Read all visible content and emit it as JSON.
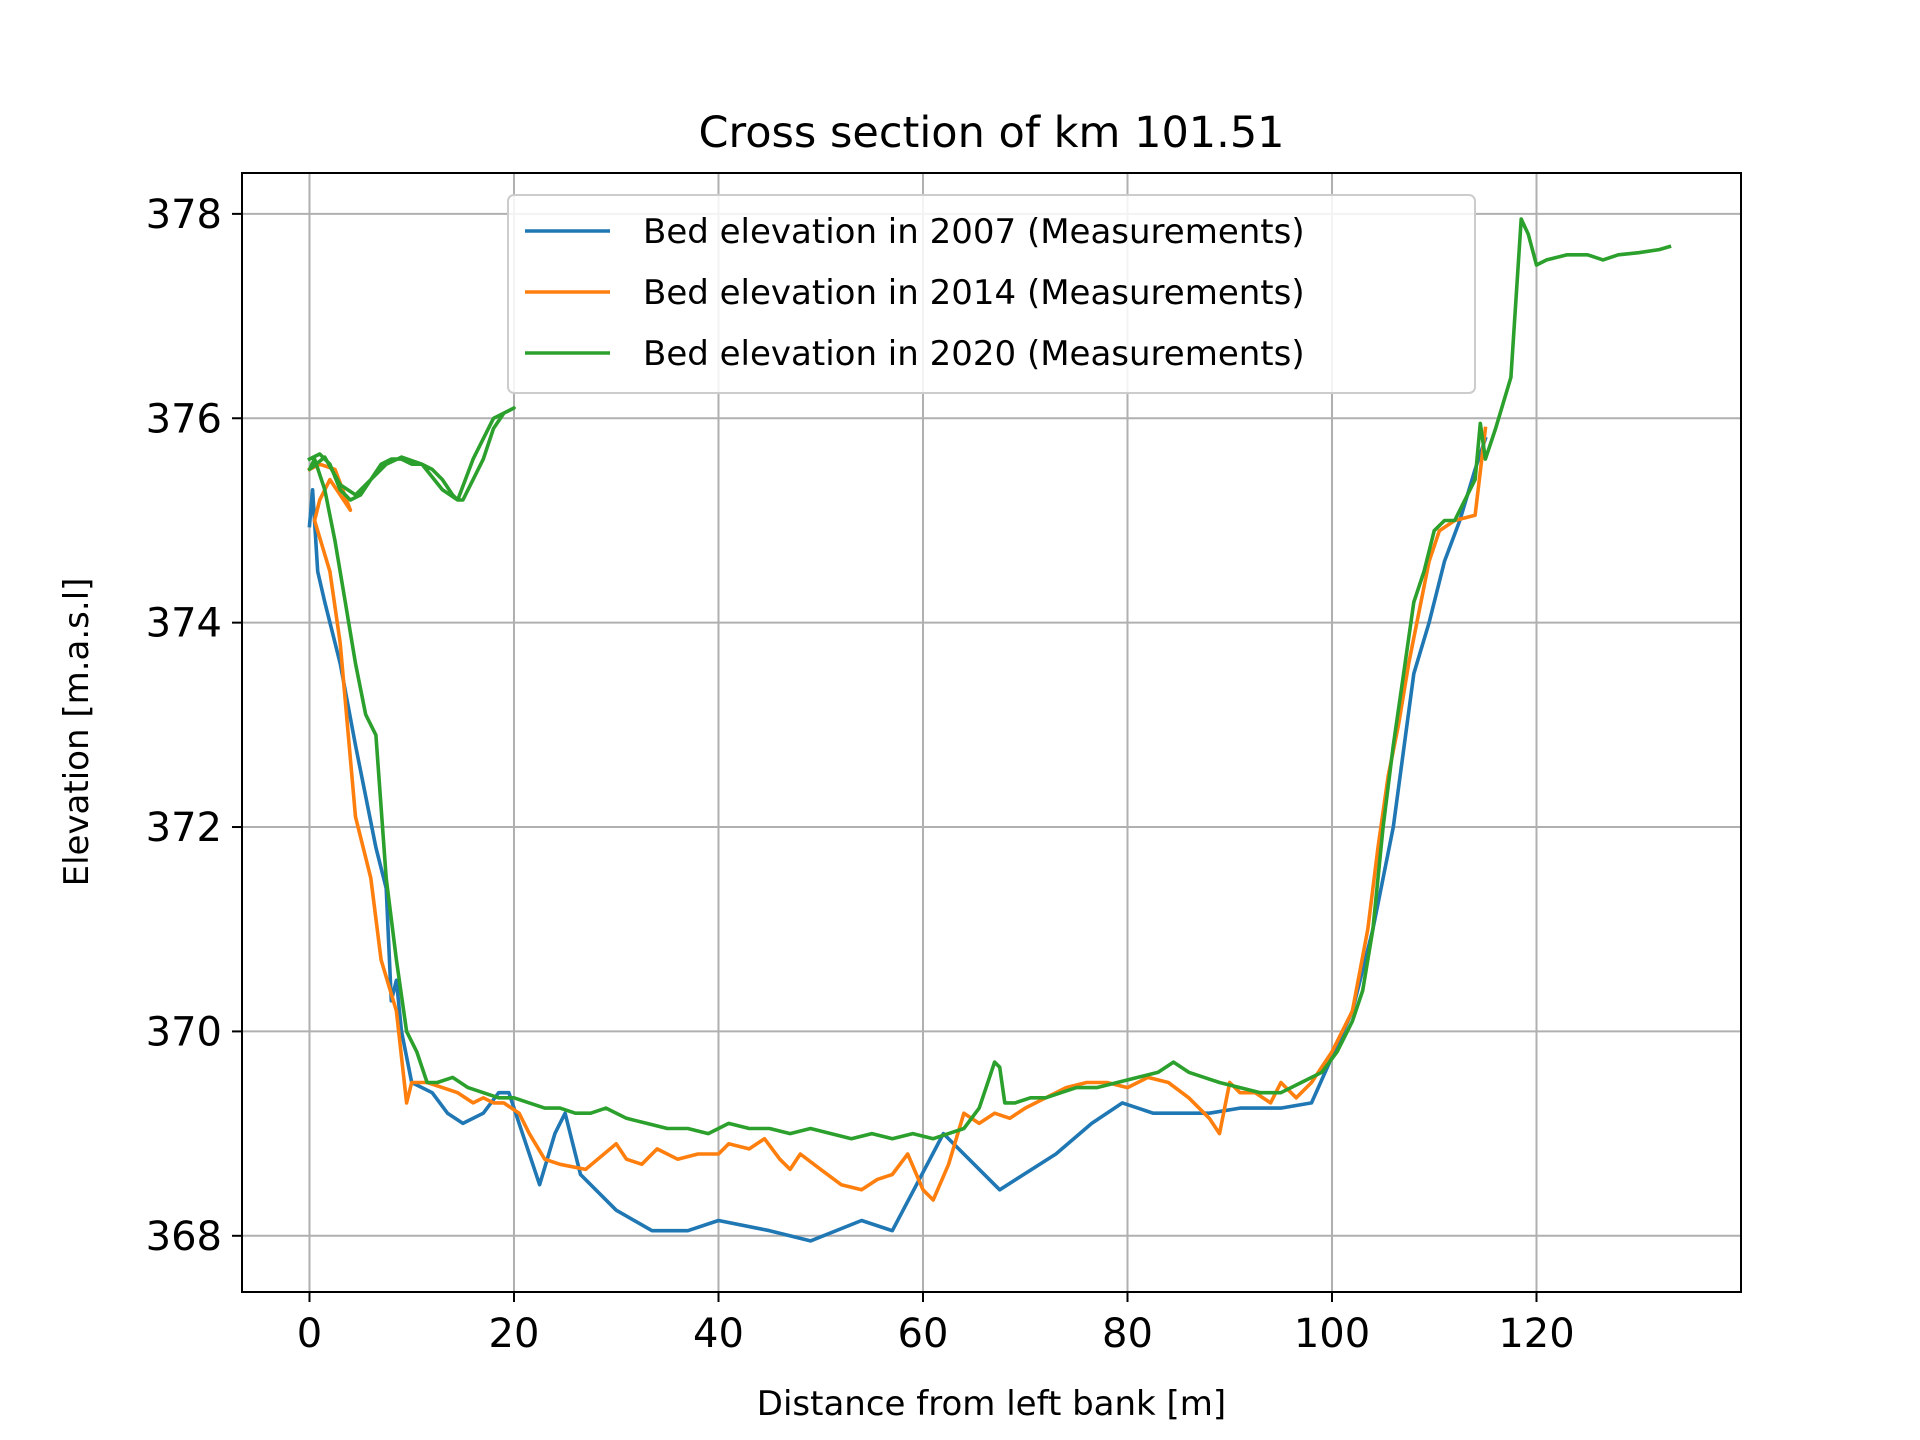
{
  "chart_data": {
    "type": "line",
    "title": "Cross section of km 101.51",
    "xlabel": "Distance from left bank [m]",
    "ylabel": "Elevation [m.a.s.l]",
    "xlim": [
      -6.6,
      140.0
    ],
    "ylim": [
      367.45,
      378.4
    ],
    "xticks": [
      0,
      20,
      40,
      60,
      80,
      100,
      120
    ],
    "yticks": [
      368,
      370,
      372,
      374,
      376,
      378
    ],
    "xtick_labels": [
      "0",
      "20",
      "40",
      "60",
      "80",
      "100",
      "120"
    ],
    "ytick_labels": [
      "368",
      "370",
      "372",
      "374",
      "376",
      "378"
    ],
    "grid": true,
    "legend_position": "upper-center",
    "series": [
      {
        "name": "Bed elevation in 2007 (Measurements)",
        "color": "#1f77b4",
        "x": [
          0.0,
          0.3,
          0.8,
          1.5,
          3.0,
          4.5,
          5.5,
          6.5,
          7.5,
          8.0,
          8.5,
          9.0,
          10.0,
          12.0,
          13.5,
          15.0,
          17.0,
          18.5,
          19.5,
          20.5,
          22.5,
          24.0,
          25.0,
          26.5,
          30.0,
          33.5,
          37.0,
          40.0,
          45.0,
          49.0,
          54.0,
          57.0,
          62.0,
          67.5,
          73.0,
          76.5,
          79.5,
          82.5,
          88.0,
          91.0,
          95.0,
          98.0,
          102.0,
          104.0,
          106.0,
          108.0,
          109.5,
          111.0,
          112.5,
          114.0,
          115.0
        ],
        "y": [
          374.95,
          375.3,
          374.5,
          374.2,
          373.6,
          372.8,
          372.3,
          371.8,
          371.4,
          370.3,
          370.5,
          370.0,
          369.5,
          369.4,
          369.2,
          369.1,
          369.2,
          369.4,
          369.4,
          369.1,
          368.5,
          369.0,
          369.2,
          368.6,
          368.25,
          368.05,
          368.05,
          368.15,
          368.05,
          367.95,
          368.15,
          368.05,
          369.0,
          368.45,
          368.8,
          369.1,
          369.3,
          369.2,
          369.2,
          369.25,
          369.25,
          369.3,
          370.2,
          371.0,
          372.0,
          373.5,
          374.0,
          374.6,
          375.0,
          375.5,
          375.8
        ]
      },
      {
        "name": "Bed elevation in 2014 (Measurements)",
        "color": "#ff7f0e",
        "x": [
          0.0,
          1.0,
          2.5,
          4.0,
          3.0,
          2.0,
          1.0,
          0.5,
          2.0,
          3.0,
          4.5,
          6.0,
          7.0,
          8.5,
          9.5,
          10.0,
          11.5,
          13.0,
          14.5,
          16.0,
          17.0,
          18.0,
          19.0,
          20.5,
          21.5,
          23.0,
          24.5,
          27.0,
          30.0,
          31.0,
          32.5,
          34.0,
          36.0,
          38.0,
          40.0,
          41.0,
          43.0,
          44.5,
          46.0,
          47.0,
          48.0,
          50.0,
          52.0,
          54.0,
          55.5,
          57.0,
          58.5,
          60.0,
          61.0,
          62.5,
          64.0,
          65.5,
          67.0,
          68.5,
          70.0,
          72.0,
          74.0,
          76.0,
          78.0,
          80.0,
          82.0,
          84.0,
          86.0,
          88.0,
          89.0,
          90.0,
          91.0,
          92.5,
          94.0,
          95.0,
          96.5,
          98.0,
          100.0,
          102.0,
          103.5,
          104.5,
          105.5,
          106.5,
          107.5,
          108.5,
          109.5,
          110.5,
          112.0,
          114.0,
          115.0
        ],
        "y": [
          375.5,
          375.55,
          375.5,
          375.1,
          375.25,
          375.4,
          375.2,
          375.0,
          374.5,
          373.8,
          372.1,
          371.5,
          370.7,
          370.2,
          369.3,
          369.5,
          369.5,
          369.45,
          369.4,
          369.3,
          369.35,
          369.3,
          369.3,
          369.2,
          369.0,
          368.75,
          368.7,
          368.65,
          368.9,
          368.75,
          368.7,
          368.85,
          368.75,
          368.8,
          368.8,
          368.9,
          368.85,
          368.95,
          368.75,
          368.65,
          368.8,
          368.65,
          368.5,
          368.45,
          368.55,
          368.6,
          368.8,
          368.45,
          368.35,
          368.7,
          369.2,
          369.1,
          369.2,
          369.15,
          369.25,
          369.35,
          369.45,
          369.5,
          369.5,
          369.45,
          369.55,
          369.5,
          369.35,
          369.15,
          369.0,
          369.5,
          369.4,
          369.4,
          369.3,
          369.5,
          369.35,
          369.5,
          369.8,
          370.2,
          371.0,
          371.8,
          372.5,
          373.0,
          373.6,
          374.1,
          374.6,
          374.9,
          375.0,
          375.05,
          375.9
        ]
      },
      {
        "name": "Bed elevation in 2020 (Measurements)",
        "color": "#2ca02c",
        "x": [
          0.0,
          1.0,
          2.0,
          3.0,
          4.0,
          5.0,
          6.0,
          7.0,
          8.0,
          9.0,
          10.0,
          11.0,
          12.0,
          13.0,
          14.0,
          14.5,
          15.0,
          16.0,
          17.0,
          18.0,
          19.0,
          20.0,
          18.0,
          16.0,
          14.5,
          13.0,
          11.0,
          9.0,
          7.5,
          6.0,
          4.5,
          3.0,
          1.5,
          0.0,
          0.5,
          1.5,
          2.5,
          3.5,
          4.5,
          5.5,
          6.5,
          7.5,
          8.5,
          9.5,
          10.5,
          11.5,
          12.5,
          14.0,
          15.5,
          17.0,
          18.5,
          20.0,
          21.5,
          23.0,
          24.5,
          26.0,
          27.5,
          29.0,
          31.0,
          33.0,
          35.0,
          37.0,
          39.0,
          41.0,
          43.0,
          45.0,
          47.0,
          49.0,
          51.0,
          53.0,
          55.0,
          57.0,
          59.0,
          61.0,
          62.5,
          64.0,
          65.5,
          66.5,
          67.0,
          67.5,
          68.0,
          69.0,
          70.5,
          72.0,
          73.5,
          75.0,
          77.0,
          79.0,
          81.0,
          83.0,
          84.5,
          86.0,
          87.5,
          89.0,
          91.0,
          93.0,
          95.0,
          97.0,
          99.0,
          100.5,
          102.0,
          103.0,
          104.0,
          105.0,
          106.0,
          107.0,
          108.0,
          109.0,
          110.0,
          111.0,
          112.0,
          113.0,
          114.0,
          114.5,
          115.0,
          116.0,
          117.5,
          118.5,
          119.2,
          120.0,
          121.0,
          123.0,
          125.0,
          126.5,
          128.0,
          130.0,
          132.0,
          133.0
        ],
        "y": [
          375.6,
          375.65,
          375.55,
          375.3,
          375.2,
          375.25,
          375.4,
          375.55,
          375.6,
          375.6,
          375.55,
          375.55,
          375.5,
          375.4,
          375.25,
          375.2,
          375.2,
          375.4,
          375.6,
          375.9,
          376.05,
          376.1,
          376.0,
          375.6,
          375.2,
          375.3,
          375.55,
          375.62,
          375.55,
          375.4,
          375.25,
          375.35,
          375.62,
          375.5,
          375.6,
          375.3,
          374.8,
          374.2,
          373.6,
          373.1,
          372.9,
          371.5,
          370.7,
          370.0,
          369.8,
          369.5,
          369.5,
          369.55,
          369.45,
          369.4,
          369.35,
          369.35,
          369.3,
          369.25,
          369.25,
          369.2,
          369.2,
          369.25,
          369.15,
          369.1,
          369.05,
          369.05,
          369.0,
          369.1,
          369.05,
          369.05,
          369.0,
          369.05,
          369.0,
          368.95,
          369.0,
          368.95,
          369.0,
          368.95,
          369.0,
          369.05,
          369.25,
          369.55,
          369.7,
          369.65,
          369.3,
          369.3,
          369.35,
          369.35,
          369.4,
          369.45,
          369.45,
          369.5,
          369.55,
          369.6,
          369.7,
          369.6,
          369.55,
          369.5,
          369.45,
          369.4,
          369.4,
          369.5,
          369.6,
          369.8,
          370.1,
          370.4,
          371.0,
          372.0,
          372.8,
          373.5,
          374.2,
          374.5,
          374.9,
          375.0,
          375.0,
          375.2,
          375.4,
          375.95,
          375.6,
          375.9,
          376.4,
          377.95,
          377.8,
          377.5,
          377.55,
          377.6,
          377.6,
          377.55,
          377.6,
          377.62,
          377.65,
          377.68
        ]
      }
    ]
  }
}
